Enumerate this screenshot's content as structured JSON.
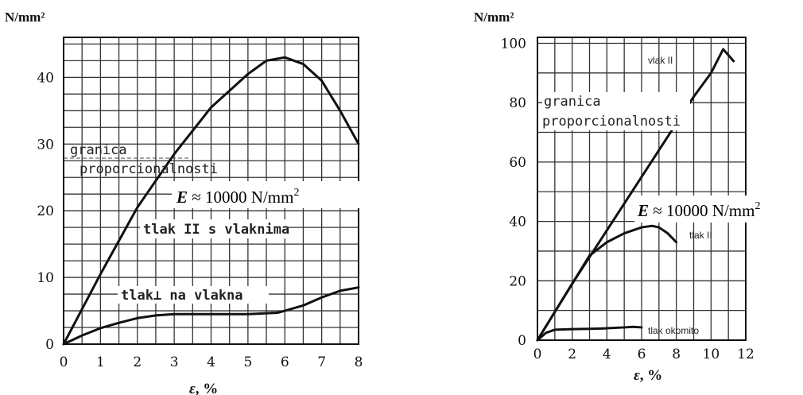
{
  "chart_data": [
    {
      "type": "line",
      "ylabel": "N/mm²",
      "xlabel_symbol": "ε",
      "xlabel_unit": ", %",
      "xlim": [
        0,
        8
      ],
      "ylim": [
        0,
        46
      ],
      "xticks": [
        0,
        1,
        2,
        3,
        4,
        5,
        6,
        7,
        8
      ],
      "yticks": [
        0,
        10,
        20,
        30,
        40
      ],
      "grid": true,
      "series": [
        {
          "name": "tlak II s vlaknima",
          "x": [
            0,
            1,
            2,
            3,
            4,
            5,
            5.5,
            6,
            6.5,
            7,
            7.5,
            8
          ],
          "y": [
            0,
            10.5,
            20.5,
            28.5,
            35.5,
            40.5,
            42.5,
            43,
            42,
            39.5,
            35,
            30
          ]
        },
        {
          "name": "tlak⊥ na vlakna",
          "x": [
            0,
            0.5,
            1,
            1.5,
            2,
            2.5,
            3,
            4,
            5,
            5.8,
            6,
            6.5,
            7,
            7.5,
            8
          ],
          "y": [
            0,
            1.3,
            2.4,
            3.2,
            3.9,
            4.3,
            4.5,
            4.5,
            4.5,
            4.7,
            5,
            5.8,
            7,
            8,
            8.5
          ]
        }
      ],
      "annotations": {
        "limit_line1": "granica",
        "limit_line2": "proporcionalnosti",
        "modulus_symbol": "E",
        "modulus_text": " ≈ 10000 N/mm",
        "modulus_exp": "2"
      }
    },
    {
      "type": "line",
      "ylabel": "N/mm²",
      "xlabel_symbol": "ε",
      "xlabel_unit": ", %",
      "xlim": [
        0,
        12
      ],
      "ylim": [
        0,
        102
      ],
      "xticks": [
        0,
        2,
        4,
        6,
        8,
        10,
        12
      ],
      "yticks": [
        0,
        20,
        40,
        60,
        80,
        100
      ],
      "grid": true,
      "series": [
        {
          "name": "vlak II",
          "x": [
            0,
            2,
            4,
            6,
            8,
            9,
            10,
            10.7,
            11.3
          ],
          "y": [
            0,
            19,
            37,
            55,
            73,
            82,
            90,
            98,
            94
          ]
        },
        {
          "name": "tlak II",
          "x": [
            0,
            1,
            2,
            3,
            4,
            5,
            6,
            6.6,
            7,
            7.5,
            8
          ],
          "y": [
            0,
            9.5,
            19,
            28.5,
            33,
            36,
            38,
            38.5,
            38,
            36,
            33
          ]
        },
        {
          "name": "tlak okomito",
          "x": [
            0,
            0.5,
            1,
            2,
            3,
            4,
            5,
            5.5,
            6
          ],
          "y": [
            0,
            2.5,
            3.5,
            3.7,
            3.8,
            4,
            4.3,
            4.5,
            4.3
          ]
        }
      ],
      "annotations": {
        "limit_line1": "granica",
        "limit_line2": "proporcionalnosti",
        "modulus_symbol": "E",
        "modulus_text": " ≈ 10000 N/mm",
        "modulus_exp": "2"
      }
    }
  ]
}
